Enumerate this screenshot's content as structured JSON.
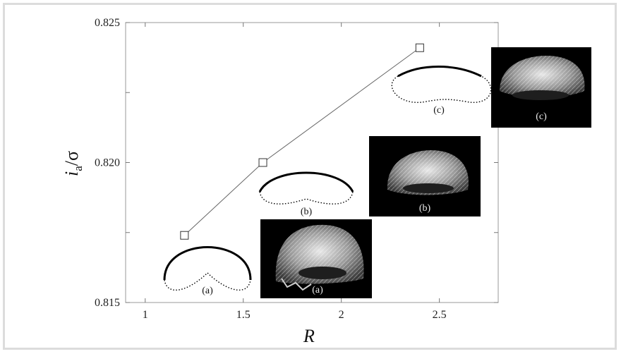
{
  "chart_data": {
    "type": "line",
    "xlabel": "R",
    "ylabel": {
      "main": "i",
      "sub": "a",
      "tail": "/σ"
    },
    "xlim": [
      0.9,
      2.8
    ],
    "ylim": [
      0.815,
      0.825
    ],
    "xticks": [
      1,
      1.5,
      2,
      2.5
    ],
    "xtick_labels": [
      "1",
      "1.5",
      "2",
      "2.5"
    ],
    "yticks": [
      0.815,
      0.82,
      0.825
    ],
    "ytick_labels": [
      "0.815",
      "0.820",
      "0.825"
    ],
    "series": [
      {
        "x": [
          1.2,
          1.6,
          2.4
        ],
        "y": [
          0.8174,
          0.82,
          0.8241
        ]
      }
    ],
    "inset_shapes": [
      {
        "label": "(a)"
      },
      {
        "label": "(b)"
      },
      {
        "label": "(c)"
      }
    ],
    "inset_photos": [
      {
        "label": "(a)"
      },
      {
        "label": "(b)"
      },
      {
        "label": "(c)"
      }
    ],
    "grid": false
  }
}
